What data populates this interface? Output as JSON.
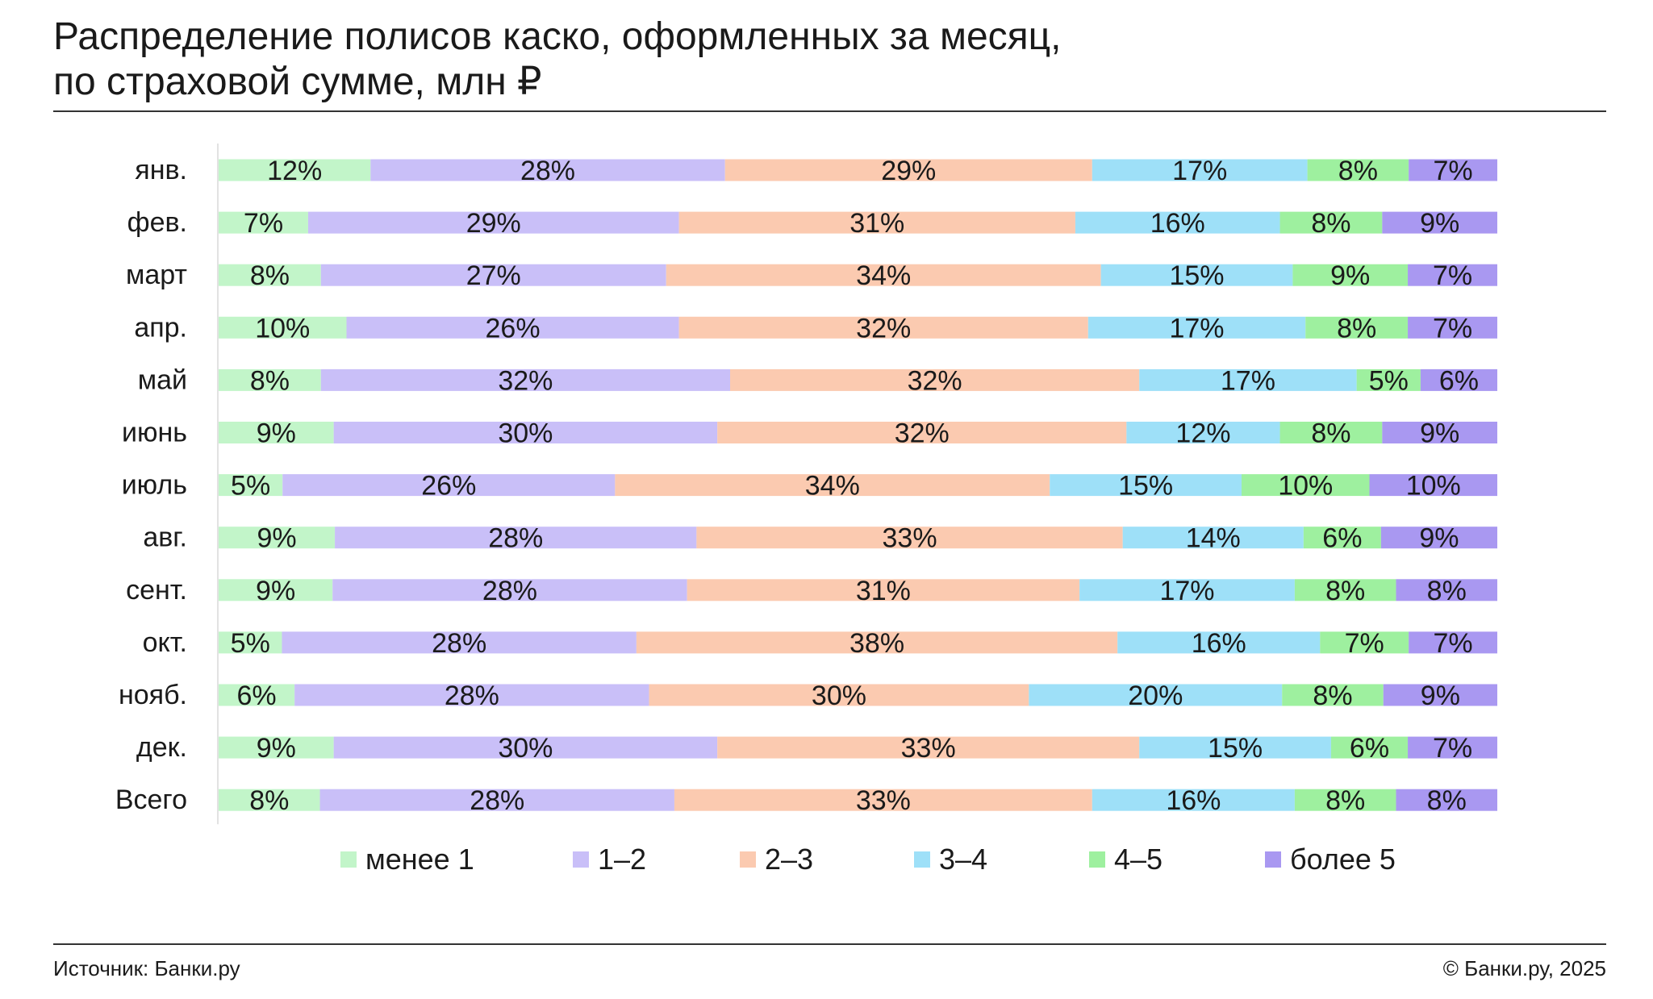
{
  "title": {
    "line1": "Распределение полисов каско, оформленных за месяц,",
    "line2": "по страховой сумме, млн ₽"
  },
  "footer": {
    "source": "Источник: Банки.ру",
    "copyright": "© Банки.ру, 2025"
  },
  "colors": {
    "менее 1": "#c2f5c9",
    "1–2": "#c9bff8",
    "2–3": "#fbcab0",
    "3–4": "#9ee0f8",
    "4–5": "#9ef09f",
    "более 5": "#a998f1",
    "axis": "#e2e2e2",
    "rule": "#333333"
  },
  "chart_data": {
    "type": "bar",
    "orientation": "horizontal",
    "stacked": true,
    "normalized": true,
    "title": "Распределение полисов каско, оформленных за месяц, по страховой сумме, млн ₽",
    "categories": [
      "янв.",
      "фев.",
      "март",
      "апр.",
      "май",
      "июнь",
      "июль",
      "авг.",
      "сент.",
      "окт.",
      "нояб.",
      "дек.",
      "Всего"
    ],
    "legend_position": "bottom",
    "grid": false,
    "series": [
      {
        "name": "менее 1",
        "values": [
          12,
          7,
          8,
          10,
          8,
          9,
          5,
          9,
          9,
          5,
          6,
          9,
          8
        ],
        "labels": [
          "12%",
          "7%",
          "8%",
          "10%",
          "8%",
          "9%",
          "5%",
          "9%",
          "9%",
          "5%",
          "6%",
          "9%",
          "8%"
        ]
      },
      {
        "name": "1–2",
        "values": [
          28,
          29,
          27,
          26,
          32,
          30,
          26,
          28,
          28,
          28,
          28,
          30,
          28
        ],
        "labels": [
          "28%",
          "29%",
          "27%",
          "26%",
          "32%",
          "30%",
          "26%",
          "28%",
          "28%",
          "28%",
          "28%",
          "30%",
          "28%"
        ]
      },
      {
        "name": "2–3",
        "values": [
          29,
          31,
          34,
          32,
          32,
          32,
          34,
          33,
          31,
          38,
          30,
          33,
          33
        ],
        "labels": [
          "29%",
          "31%",
          "34%",
          "32%",
          "32%",
          "32%",
          "34%",
          "33%",
          "31%",
          "38%",
          "30%",
          "33%",
          "33%"
        ]
      },
      {
        "name": "3–4",
        "values": [
          17,
          16,
          15,
          17,
          17,
          12,
          15,
          14,
          17,
          16,
          20,
          15,
          16
        ],
        "labels": [
          "17%",
          "16%",
          "15%",
          "17%",
          "17%",
          "12%",
          "15%",
          "14%",
          "17%",
          "16%",
          "20%",
          "15%",
          "16%"
        ]
      },
      {
        "name": "4–5",
        "values": [
          8,
          8,
          9,
          8,
          5,
          8,
          10,
          6,
          8,
          7,
          8,
          6,
          8
        ],
        "labels": [
          "8%",
          "8%",
          "9%",
          "8%",
          "5%",
          "8%",
          "10%",
          "6%",
          "8%",
          "7%",
          "8%",
          "6%",
          "8%"
        ]
      },
      {
        "name": "более 5",
        "values": [
          7,
          9,
          7,
          7,
          6,
          9,
          10,
          9,
          8,
          7,
          9,
          7,
          8
        ],
        "labels": [
          "7%",
          "9%",
          "7%",
          "7%",
          "6%",
          "9%",
          "10%",
          "9%",
          "8%",
          "7%",
          "9%",
          "7%",
          "8%"
        ]
      }
    ]
  }
}
